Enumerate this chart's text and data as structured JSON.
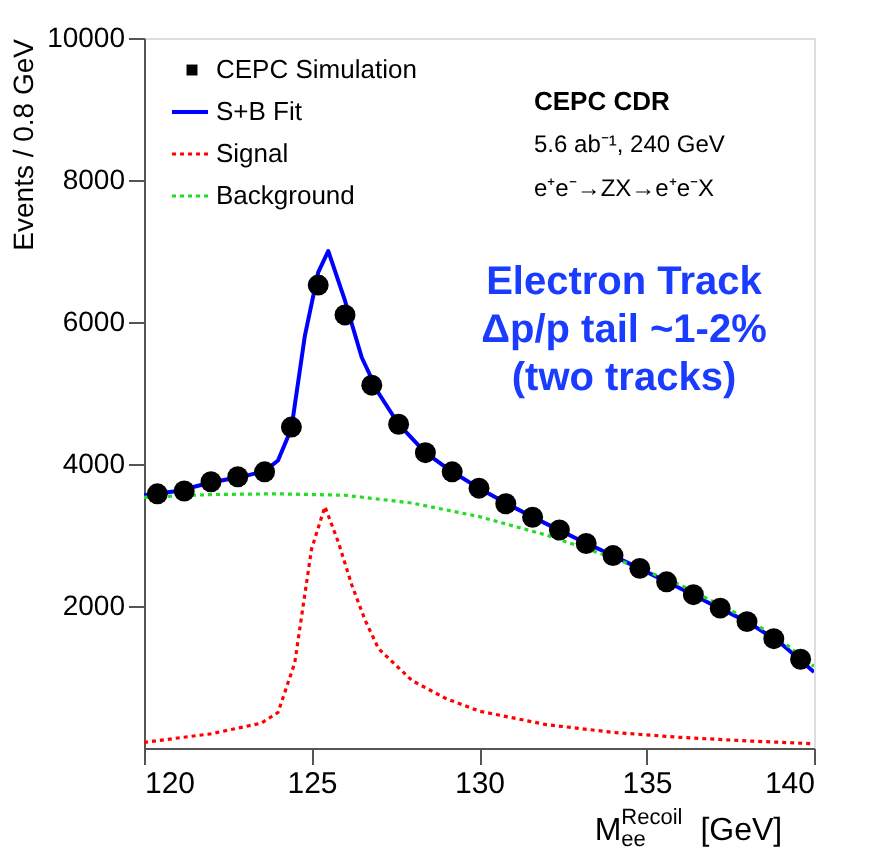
{
  "chart_data": {
    "type": "line",
    "xlabel": "M$_{ee}$$^{Recoil}$ [GeV]",
    "ylabel": "Events / 0.8  GeV",
    "xlim": [
      120,
      140
    ],
    "xticks": [
      120,
      125,
      130,
      135,
      140
    ],
    "ylim": [
      0,
      10000
    ],
    "yticks": [
      2000,
      4000,
      6000,
      8000,
      10000
    ],
    "grid": false,
    "legend": "top left",
    "series": [
      {
        "name": "CEPC Simulation",
        "type": "scatter",
        "marker": "circle",
        "color": "#000000",
        "x": [
          120.4,
          121.2,
          122.0,
          122.8,
          123.6,
          124.4,
          125.2,
          126.0,
          126.8,
          127.6,
          128.4,
          129.2,
          130.0,
          130.8,
          131.6,
          132.4,
          133.2,
          134.0,
          134.8,
          135.6,
          136.4,
          137.2,
          138.0,
          138.8,
          139.6
        ],
        "values": [
          3580,
          3620,
          3750,
          3820,
          3890,
          4520,
          6520,
          6100,
          5110,
          4560,
          4160,
          3890,
          3660,
          3440,
          3250,
          3070,
          2880,
          2710,
          2530,
          2340,
          2160,
          1970,
          1780,
          1540,
          1250
        ]
      },
      {
        "name": "S+B Fit",
        "type": "line",
        "line_style": "solid",
        "color": "#0000ff",
        "x": [
          120,
          121,
          122,
          123,
          123.6,
          124.0,
          124.4,
          124.8,
          125.2,
          125.5,
          126.0,
          126.5,
          127.0,
          127.6,
          128.4,
          129.2,
          130.0,
          131.0,
          132.0,
          133.0,
          134.0,
          135.0,
          136.0,
          137.0,
          138.0,
          139.0,
          140.0
        ],
        "values": [
          3560,
          3620,
          3740,
          3830,
          3900,
          4050,
          4500,
          5800,
          6700,
          7000,
          6300,
          5500,
          5000,
          4560,
          4160,
          3890,
          3660,
          3400,
          3160,
          2930,
          2710,
          2480,
          2250,
          2010,
          1780,
          1480,
          1070
        ]
      },
      {
        "name": "Signal",
        "type": "line",
        "line_style": "dotted",
        "color": "#ff0000",
        "x": [
          120,
          122,
          123.5,
          124.0,
          124.5,
          125.0,
          125.4,
          125.8,
          126.2,
          126.6,
          127.0,
          128.0,
          129.0,
          130.0,
          132.0,
          134.0,
          136.0,
          138.0,
          140.0
        ],
        "values": [
          80,
          200,
          350,
          500,
          1200,
          2800,
          3400,
          2900,
          2300,
          1800,
          1400,
          950,
          700,
          520,
          330,
          220,
          150,
          100,
          60
        ]
      },
      {
        "name": "Background",
        "type": "line",
        "line_style": "dotted",
        "color": "#22dd22",
        "x": [
          120,
          122,
          124,
          126,
          128,
          130,
          132,
          134,
          136,
          138,
          139,
          140
        ],
        "values": [
          3530,
          3570,
          3580,
          3560,
          3450,
          3260,
          3000,
          2680,
          2300,
          1820,
          1520,
          1150
        ]
      }
    ],
    "annotations": [
      "CEPC CDR",
      "5.6 ab⁻¹, 240 GeV",
      "e⁺e⁻→ZX→e⁺e⁻X",
      "Electron Track\nΔp/p tail ~1-2%\n(two tracks)"
    ]
  }
}
